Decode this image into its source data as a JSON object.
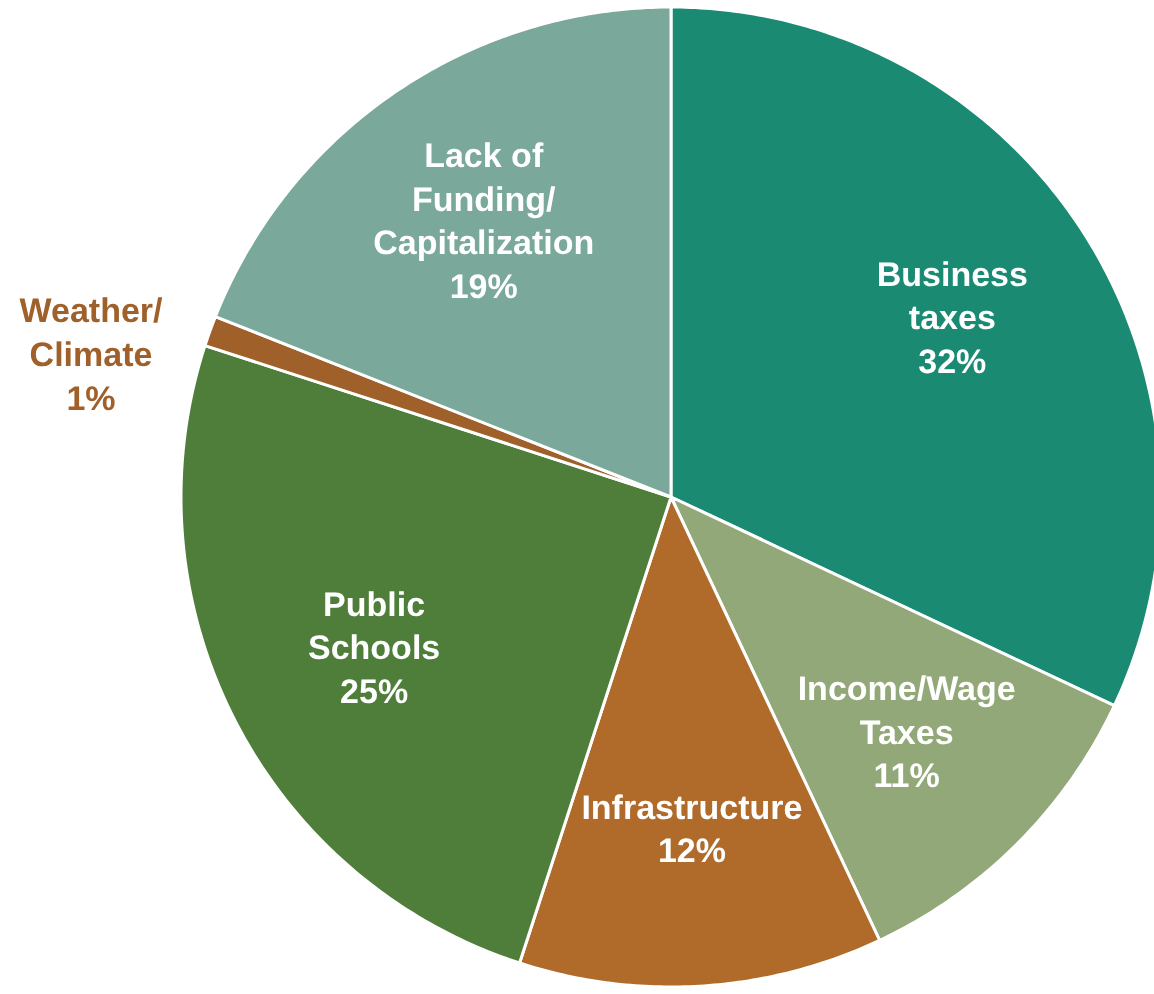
{
  "chart_data": {
    "type": "pie",
    "categories": [
      "Business\ntaxes",
      "Income/Wage\nTaxes",
      "Infrastructure",
      "Public\nSchools",
      "Weather/\nClimate",
      "Lack of\nFunding/\nCapitalization"
    ],
    "values": [
      32,
      11,
      12,
      25,
      1,
      19
    ],
    "value_labels": [
      "32%",
      "11%",
      "12%",
      "25%",
      "1%",
      "19%"
    ],
    "colors": [
      "#1b8a73",
      "#93a878",
      "#b06a2a",
      "#4f7d3a",
      "#a0602a",
      "#7aa89a"
    ]
  }
}
